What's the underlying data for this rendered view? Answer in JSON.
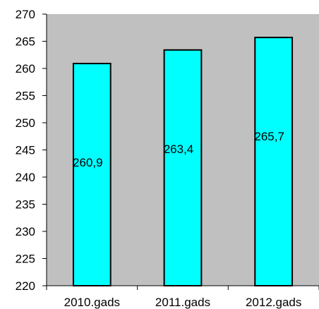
{
  "chart_data": {
    "type": "bar",
    "categories": [
      "2010.gads",
      "2011.gads",
      "2012.gads"
    ],
    "values": [
      260.9,
      263.4,
      265.7
    ],
    "data_labels": [
      "260,9",
      "263,4",
      "265,7"
    ],
    "ylim": [
      220,
      270
    ],
    "yticks": [
      220,
      225,
      230,
      235,
      240,
      245,
      250,
      255,
      260,
      265,
      270
    ],
    "grid": false,
    "legend": "none",
    "plot_background": "#c0c0c0",
    "bar_color": "#00ffff",
    "bar_edge_color": "#000000"
  }
}
